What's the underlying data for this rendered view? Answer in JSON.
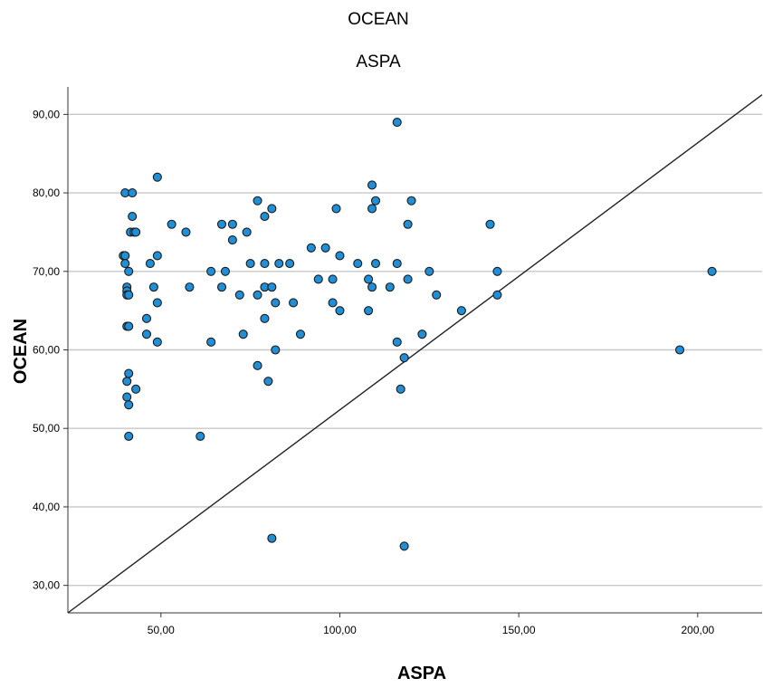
{
  "chart_data": {
    "type": "scatter",
    "title": "OCEAN",
    "subtitle": "ASPA",
    "xlabel": "ASPA",
    "ylabel": "OCEAN",
    "xlim": [
      24,
      218
    ],
    "ylim": [
      26.5,
      93.5
    ],
    "x_ticks": [
      50,
      100,
      150,
      200
    ],
    "x_tick_labels": [
      "50,00",
      "100,00",
      "150,00",
      "200,00"
    ],
    "y_ticks": [
      30,
      40,
      50,
      60,
      70,
      80,
      90
    ],
    "y_tick_labels": [
      "30,00",
      "40,00",
      "50,00",
      "60,00",
      "70,00",
      "80,00",
      "90,00"
    ],
    "grid": "horizontal",
    "reference_line": {
      "x": [
        24,
        218
      ],
      "y": [
        26.5,
        92.5
      ]
    },
    "points": [
      [
        39.5,
        72
      ],
      [
        40,
        72
      ],
      [
        40,
        71
      ],
      [
        40.5,
        68
      ],
      [
        40.5,
        67.5
      ],
      [
        40.5,
        67
      ],
      [
        40.5,
        63
      ],
      [
        40.5,
        56
      ],
      [
        40.5,
        54
      ],
      [
        40,
        80
      ],
      [
        41,
        70
      ],
      [
        41,
        67
      ],
      [
        41,
        57
      ],
      [
        41,
        63
      ],
      [
        41,
        53
      ],
      [
        41,
        49
      ],
      [
        41.5,
        75
      ],
      [
        42,
        80
      ],
      [
        42,
        77
      ],
      [
        42.5,
        75
      ],
      [
        43,
        75
      ],
      [
        43,
        55
      ],
      [
        46,
        64
      ],
      [
        46,
        62
      ],
      [
        47,
        71
      ],
      [
        48,
        68
      ],
      [
        49,
        82
      ],
      [
        49,
        72
      ],
      [
        49,
        66
      ],
      [
        49,
        61
      ],
      [
        53,
        76
      ],
      [
        57,
        75
      ],
      [
        58,
        68
      ],
      [
        61,
        49
      ],
      [
        64,
        70
      ],
      [
        64,
        61
      ],
      [
        67,
        76
      ],
      [
        67,
        68
      ],
      [
        68,
        70
      ],
      [
        70,
        76
      ],
      [
        70,
        74
      ],
      [
        72,
        67
      ],
      [
        73,
        62
      ],
      [
        74,
        75
      ],
      [
        75,
        71
      ],
      [
        77,
        79
      ],
      [
        77,
        67
      ],
      [
        77,
        58
      ],
      [
        79,
        77
      ],
      [
        79,
        71
      ],
      [
        79,
        68
      ],
      [
        79,
        64
      ],
      [
        80,
        56
      ],
      [
        81,
        78
      ],
      [
        81,
        68
      ],
      [
        81,
        36
      ],
      [
        82,
        66
      ],
      [
        82,
        60
      ],
      [
        83,
        71
      ],
      [
        86,
        71
      ],
      [
        87,
        66
      ],
      [
        89,
        62
      ],
      [
        92,
        73
      ],
      [
        94,
        69
      ],
      [
        96,
        73
      ],
      [
        98,
        69
      ],
      [
        98,
        66
      ],
      [
        99,
        78
      ],
      [
        100,
        72
      ],
      [
        100,
        65
      ],
      [
        105,
        71
      ],
      [
        108,
        69
      ],
      [
        108,
        65
      ],
      [
        109,
        78
      ],
      [
        109,
        68
      ],
      [
        109,
        81
      ],
      [
        110,
        79
      ],
      [
        110,
        71
      ],
      [
        114,
        68
      ],
      [
        116,
        89
      ],
      [
        116,
        71
      ],
      [
        116,
        61
      ],
      [
        117,
        55
      ],
      [
        118,
        59
      ],
      [
        118,
        35
      ],
      [
        119,
        76
      ],
      [
        119,
        69
      ],
      [
        120,
        79
      ],
      [
        123,
        62
      ],
      [
        125,
        70
      ],
      [
        127,
        67
      ],
      [
        134,
        65
      ],
      [
        142,
        76
      ],
      [
        144,
        70
      ],
      [
        144,
        67
      ],
      [
        195,
        60
      ],
      [
        204,
        70
      ]
    ]
  }
}
